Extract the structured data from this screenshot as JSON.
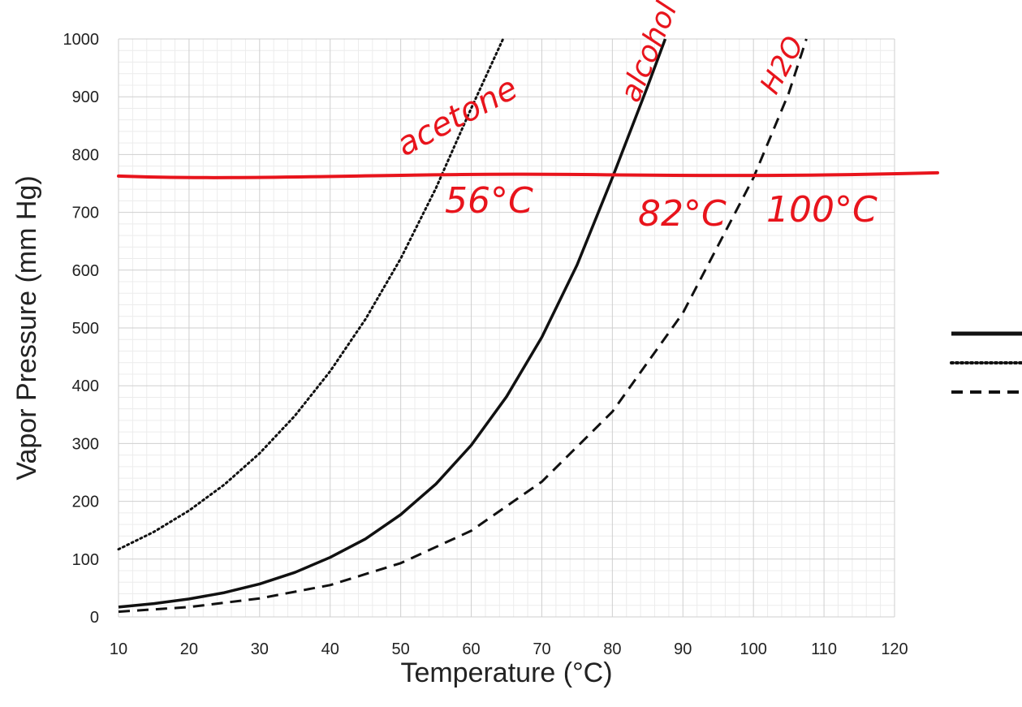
{
  "chart_data": {
    "type": "line",
    "title": "",
    "xlabel": "Temperature (°C)",
    "ylabel": "Vapor Pressure (mm Hg)",
    "xlim": [
      10,
      120
    ],
    "ylim": [
      0,
      1000
    ],
    "x_ticks": [
      10,
      20,
      30,
      40,
      50,
      60,
      70,
      80,
      90,
      100,
      110,
      120
    ],
    "y_ticks": [
      0,
      100,
      200,
      300,
      400,
      500,
      600,
      700,
      800,
      900,
      1000
    ],
    "grid": true,
    "legend": "right",
    "series": [
      {
        "line_style": "solid",
        "x": [
          10,
          15,
          20,
          25,
          30,
          35,
          40,
          45,
          50,
          55,
          60,
          65,
          70,
          75,
          80,
          82,
          85,
          87.5
        ],
        "y": [
          17,
          23,
          31,
          42,
          57,
          77,
          103,
          135,
          177,
          230,
          297,
          381,
          484,
          609,
          760,
          823,
          918,
          1000
        ]
      },
      {
        "line_style": "dotted",
        "x": [
          10,
          15,
          20,
          25,
          30,
          35,
          40,
          45,
          50,
          55,
          56,
          60,
          64.5
        ],
        "y": [
          117,
          147,
          184,
          229,
          283,
          348,
          425,
          515,
          620,
          742,
          770,
          880,
          1000
        ]
      },
      {
        "line_style": "dashed",
        "x": [
          10,
          20,
          30,
          40,
          50,
          60,
          70,
          80,
          90,
          100,
          105,
          107.5
        ],
        "y": [
          9,
          17,
          32,
          55,
          93,
          149,
          234,
          355,
          526,
          760,
          906,
          1000
        ]
      }
    ],
    "annotations": {
      "reference_line": {
        "y": 760,
        "color": "#e8141c"
      },
      "handwritten_labels": [
        "acetone",
        "alcohol",
        "H2O",
        "56°C",
        "82°C",
        "100°C"
      ]
    }
  },
  "colors": {
    "annotation_red": "#e8141c",
    "line": "#111111",
    "grid_major": "#cfcfcf",
    "grid_minor": "#ececec"
  }
}
